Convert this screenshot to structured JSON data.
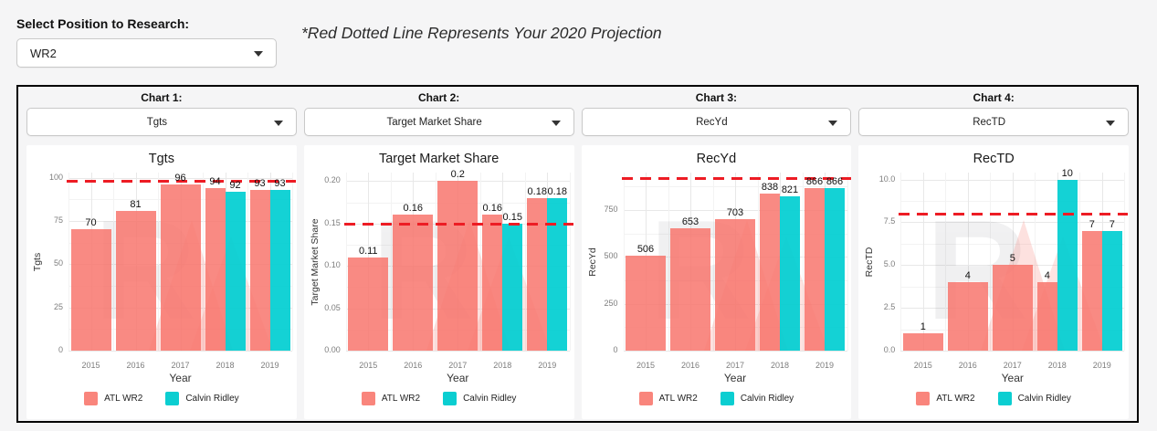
{
  "page": {
    "select_label": "Select Position to Research:",
    "select_value": "WR2",
    "note": "*Red Dotted Line Represents Your 2020 Projection"
  },
  "legend": {
    "series": [
      {
        "name": "ATL WR2",
        "swatch_color": "#F9857C"
      },
      {
        "name": "Calvin Ridley",
        "swatch_color": "#0BCED1"
      }
    ]
  },
  "colors": {
    "series1_bar": "rgba(248,118,109,0.85)",
    "series2_bar": "rgba(0,206,209,0.92)",
    "projection_line": "#ED1C24",
    "grid_major": "#e8e8e8",
    "grid_minor": "#f3f3f3",
    "tick_text": "#7d7d7d"
  },
  "chart_data": [
    {
      "type": "bar",
      "header_label": "Chart 1:",
      "dropdown_value": "Tgts",
      "title": "Tgts",
      "xlabel": "Year",
      "ylabel": "Tgts",
      "categories": [
        "2015",
        "2016",
        "2017",
        "2018",
        "2019"
      ],
      "yticks": [
        0,
        25,
        50,
        75,
        100
      ],
      "ytick_labels": [
        "0",
        "25",
        "50",
        "75",
        "100"
      ],
      "ylim": [
        0,
        103
      ],
      "projection": 98,
      "series": [
        {
          "name": "ATL WR2",
          "values": [
            70,
            81,
            96,
            94,
            93
          ],
          "labels": [
            "70",
            "81",
            "96",
            "94",
            "93"
          ]
        },
        {
          "name": "Calvin Ridley",
          "values": [
            null,
            null,
            null,
            92,
            93
          ],
          "labels": [
            null,
            null,
            null,
            "92",
            "93"
          ]
        }
      ]
    },
    {
      "type": "bar",
      "header_label": "Chart 2:",
      "dropdown_value": "Target Market Share",
      "title": "Target Market Share",
      "xlabel": "Year",
      "ylabel": "Target Market Share",
      "categories": [
        "2015",
        "2016",
        "2017",
        "2018",
        "2019"
      ],
      "yticks": [
        0,
        0.05,
        0.1,
        0.15,
        0.2
      ],
      "ytick_labels": [
        "0.00",
        "0.05",
        "0.10",
        "0.15",
        "0.20"
      ],
      "ylim": [
        0,
        0.21
      ],
      "projection": 0.15,
      "series": [
        {
          "name": "ATL WR2",
          "values": [
            0.11,
            0.16,
            0.2,
            0.16,
            0.18
          ],
          "labels": [
            "0.11",
            "0.16",
            "0.2",
            "0.16",
            "0.18"
          ]
        },
        {
          "name": "Calvin Ridley",
          "values": [
            null,
            null,
            null,
            0.15,
            0.18
          ],
          "labels": [
            null,
            null,
            null,
            "0.15",
            "0.18"
          ]
        }
      ]
    },
    {
      "type": "bar",
      "header_label": "Chart 3:",
      "dropdown_value": "RecYd",
      "title": "RecYd",
      "xlabel": "Year",
      "ylabel": "RecYd",
      "categories": [
        "2015",
        "2016",
        "2017",
        "2018",
        "2019"
      ],
      "yticks": [
        0,
        250,
        500,
        750
      ],
      "ytick_labels": [
        "0",
        "250",
        "500",
        "750"
      ],
      "ylim": [
        0,
        950
      ],
      "projection": 920,
      "series": [
        {
          "name": "ATL WR2",
          "values": [
            506,
            653,
            703,
            838,
            866
          ],
          "labels": [
            "506",
            "653",
            "703",
            "838",
            "866"
          ]
        },
        {
          "name": "Calvin Ridley",
          "values": [
            null,
            null,
            null,
            821,
            866
          ],
          "labels": [
            null,
            null,
            null,
            "821",
            "866"
          ]
        }
      ]
    },
    {
      "type": "bar",
      "header_label": "Chart 4:",
      "dropdown_value": "RecTD",
      "title": "RecTD",
      "xlabel": "Year",
      "ylabel": "RecTD",
      "categories": [
        "2015",
        "2016",
        "2017",
        "2018",
        "2019"
      ],
      "yticks": [
        0,
        2.5,
        5,
        7.5,
        10
      ],
      "ytick_labels": [
        "0.0",
        "2.5",
        "5.0",
        "7.5",
        "10.0"
      ],
      "ylim": [
        0,
        10.4
      ],
      "projection": 8,
      "series": [
        {
          "name": "ATL WR2",
          "values": [
            1,
            4,
            5,
            4,
            7
          ],
          "labels": [
            "1",
            "4",
            "5",
            "4",
            "7"
          ]
        },
        {
          "name": "Calvin Ridley",
          "values": [
            null,
            null,
            null,
            10,
            7
          ],
          "labels": [
            null,
            null,
            null,
            "10",
            "7"
          ]
        }
      ]
    }
  ]
}
